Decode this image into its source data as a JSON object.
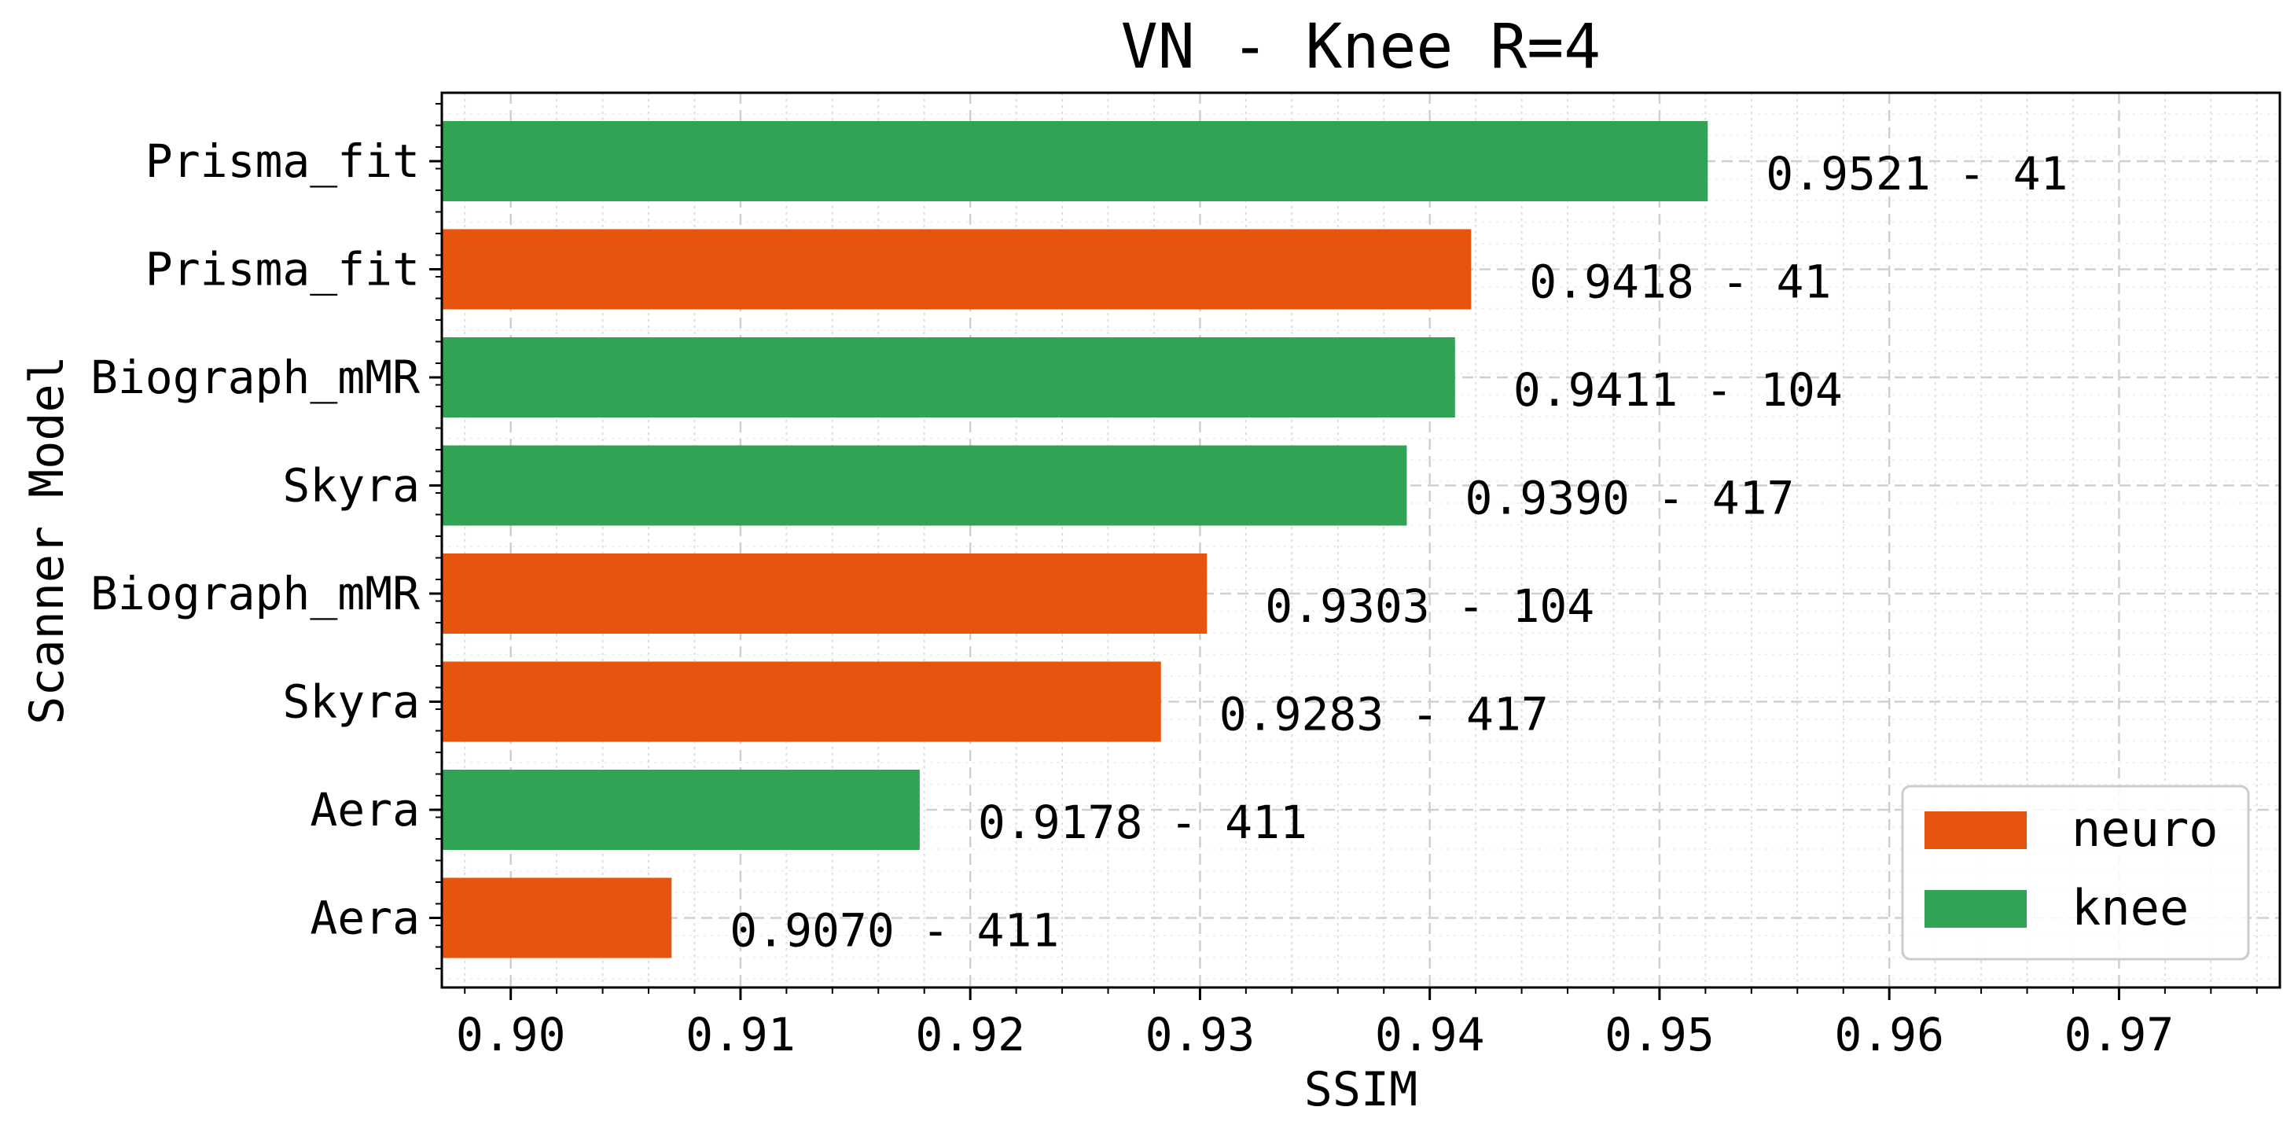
{
  "chart_data": {
    "type": "bar",
    "orientation": "horizontal",
    "title": "VN - Knee R=4",
    "xlabel": "SSIM",
    "ylabel": "Scanner Model",
    "xlim": [
      0.897,
      0.977
    ],
    "xticks": [
      0.9,
      0.91,
      0.92,
      0.93,
      0.94,
      0.95,
      0.96,
      0.97
    ],
    "xtick_labels": [
      "0.90",
      "0.91",
      "0.92",
      "0.93",
      "0.94",
      "0.95",
      "0.96",
      "0.97"
    ],
    "grid": true,
    "legend_position": "bottom-right",
    "colors": {
      "neuro": "#e6550d",
      "knee": "#31a354"
    },
    "legend": [
      {
        "name": "neuro",
        "color": "#e6550d"
      },
      {
        "name": "knee",
        "color": "#31a354"
      }
    ],
    "bars": [
      {
        "label": "Prisma_fit",
        "group": "knee",
        "value": 0.9521,
        "annotation": "0.9521 - 41"
      },
      {
        "label": "Prisma_fit",
        "group": "neuro",
        "value": 0.9418,
        "annotation": "0.9418 - 41"
      },
      {
        "label": "Biograph_mMR",
        "group": "knee",
        "value": 0.9411,
        "annotation": "0.9411 - 104"
      },
      {
        "label": "Skyra",
        "group": "knee",
        "value": 0.939,
        "annotation": "0.9390 - 417"
      },
      {
        "label": "Biograph_mMR",
        "group": "neuro",
        "value": 0.9303,
        "annotation": "0.9303 - 104"
      },
      {
        "label": "Skyra",
        "group": "neuro",
        "value": 0.9283,
        "annotation": "0.9283 - 417"
      },
      {
        "label": "Aera",
        "group": "knee",
        "value": 0.9178,
        "annotation": "0.9178 - 411"
      },
      {
        "label": "Aera",
        "group": "neuro",
        "value": 0.907,
        "annotation": "0.9070 - 411"
      }
    ]
  }
}
